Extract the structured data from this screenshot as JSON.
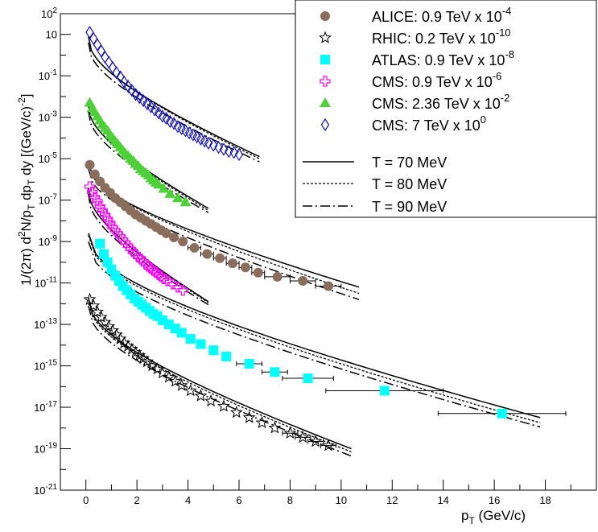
{
  "chart_data": {
    "type": "scatter",
    "title": "",
    "xlabel": {
      "main": "p",
      "sub": "T",
      "rest": " (GeV/c)"
    },
    "ylabel": {
      "p1": "1/(2",
      "pi": "π",
      "p2": ") d",
      "sup2": "2",
      "p3": "N/p",
      "subT1": "T",
      "p4": " dp",
      "subT2": "T",
      "p5": " dy [(GeV/c)",
      "supm2": "-2",
      "p6": "]"
    },
    "xlim": [
      -1,
      20
    ],
    "ylim_log10": [
      -21,
      2
    ],
    "x_ticks": [
      "0",
      "2",
      "4",
      "6",
      "8",
      "10",
      "12",
      "14",
      "16",
      "18"
    ],
    "y_ticks": [
      {
        "base": "10",
        "exp": "2"
      },
      {
        "base": "10",
        "exp": ""
      },
      {
        "base": "10",
        "exp": "-1"
      },
      {
        "base": "10",
        "exp": "-3"
      },
      {
        "base": "10",
        "exp": "-5"
      },
      {
        "base": "10",
        "exp": "-7"
      },
      {
        "base": "10",
        "exp": "-9"
      },
      {
        "base": "10",
        "exp": "-11"
      },
      {
        "base": "10",
        "exp": "-13"
      },
      {
        "base": "10",
        "exp": "-15"
      },
      {
        "base": "10",
        "exp": "-17"
      },
      {
        "base": "10",
        "exp": "-19"
      },
      {
        "base": "10",
        "exp": "-21"
      }
    ],
    "grid": false,
    "legend_position": "top-right",
    "series": [
      {
        "name": "ALICE: 0.9 TeV x 10",
        "exp": "-4",
        "marker": "circle",
        "color": "#8b6d5c",
        "x": [
          0.15,
          0.35,
          0.55,
          0.75,
          0.95,
          1.15,
          1.35,
          1.55,
          1.75,
          1.95,
          2.15,
          2.35,
          2.55,
          2.75,
          2.95,
          3.15,
          3.45,
          3.8,
          4.25,
          4.75,
          5.25,
          5.75,
          6.25,
          6.75,
          7.5,
          8.5,
          9.5
        ],
        "y": [
          -5.3,
          -5.75,
          -6.1,
          -6.4,
          -6.65,
          -6.9,
          -7.1,
          -7.3,
          -7.5,
          -7.7,
          -7.85,
          -8.0,
          -8.15,
          -8.3,
          -8.45,
          -8.6,
          -8.8,
          -9.0,
          -9.3,
          -9.6,
          -9.8,
          -10.05,
          -10.25,
          -10.5,
          -10.7,
          -10.9,
          -11.15
        ],
        "xerr": [
          0,
          0,
          0,
          0,
          0,
          0,
          0,
          0,
          0,
          0,
          0,
          0,
          0,
          0,
          0,
          0,
          0,
          0,
          0.25,
          0.25,
          0.25,
          0.25,
          0.25,
          0.25,
          0.5,
          0.5,
          0.5
        ]
      },
      {
        "name": "RHIC: 0.2 TeV x 10",
        "exp": "-10",
        "marker": "star-open",
        "color": "#000000",
        "x": [
          0.15,
          0.3,
          0.45,
          0.6,
          0.75,
          0.9,
          1.05,
          1.2,
          1.35,
          1.5,
          1.65,
          1.8,
          1.95,
          2.1,
          2.25,
          2.4,
          2.6,
          2.8,
          3.0,
          3.25,
          3.5,
          3.75,
          4.1,
          4.5,
          4.9,
          5.4,
          5.9,
          6.4,
          6.9,
          7.4,
          8.0,
          8.5,
          9.0,
          9.5
        ],
        "y": [
          -11.8,
          -12.1,
          -12.4,
          -12.65,
          -12.9,
          -13.1,
          -13.3,
          -13.5,
          -13.7,
          -13.9,
          -14.05,
          -14.2,
          -14.35,
          -14.5,
          -14.65,
          -14.8,
          -15.0,
          -15.15,
          -15.35,
          -15.55,
          -15.75,
          -15.95,
          -16.2,
          -16.45,
          -16.7,
          -16.95,
          -17.25,
          -17.5,
          -17.75,
          -18.0,
          -18.25,
          -18.45,
          -18.65,
          -18.85
        ],
        "xerr": [
          0,
          0,
          0,
          0,
          0,
          0,
          0,
          0,
          0,
          0,
          0,
          0,
          0,
          0,
          0,
          0,
          0,
          0,
          0,
          0,
          0,
          0,
          0,
          0,
          0,
          0,
          0,
          0,
          0,
          0,
          0.3,
          0.3,
          0.3,
          0.3
        ]
      },
      {
        "name": "ATLAS: 0.9 TeV x 10",
        "exp": "-8",
        "marker": "square",
        "color": "#00ffff",
        "x": [
          0.55,
          0.7,
          0.85,
          1.0,
          1.15,
          1.3,
          1.45,
          1.6,
          1.75,
          1.9,
          2.05,
          2.2,
          2.35,
          2.5,
          2.65,
          2.8,
          3.0,
          3.25,
          3.5,
          3.75,
          4.1,
          4.5,
          5.0,
          5.5,
          6.4,
          7.4,
          8.7,
          11.7,
          16.3
        ],
        "y": [
          -9.1,
          -9.6,
          -10.0,
          -10.35,
          -10.65,
          -10.9,
          -11.15,
          -11.35,
          -11.55,
          -11.75,
          -11.9,
          -12.05,
          -12.2,
          -12.35,
          -12.5,
          -12.6,
          -12.8,
          -13.0,
          -13.2,
          -13.4,
          -13.7,
          -13.95,
          -14.25,
          -14.55,
          -14.9,
          -15.3,
          -15.6,
          -16.2,
          -17.3
        ],
        "xerr": [
          0,
          0,
          0,
          0,
          0,
          0,
          0,
          0,
          0,
          0,
          0,
          0,
          0,
          0,
          0,
          0,
          0,
          0,
          0,
          0,
          0,
          0,
          0,
          0,
          0.5,
          0.5,
          1.0,
          2.3,
          2.5
        ]
      },
      {
        "name": "CMS: 0.9 TeV x 10",
        "exp": "-6",
        "marker": "cross-open",
        "color": "#ff00ff",
        "x": [
          0.15,
          0.25,
          0.35,
          0.45,
          0.55,
          0.65,
          0.75,
          0.85,
          0.95,
          1.05,
          1.15,
          1.25,
          1.35,
          1.45,
          1.55,
          1.65,
          1.75,
          1.85,
          1.95,
          2.05,
          2.15,
          2.25,
          2.35,
          2.45,
          2.55,
          2.65,
          2.75,
          2.85,
          2.95,
          3.05,
          3.2,
          3.4,
          3.6,
          3.8
        ],
        "y": [
          -6.35,
          -6.6,
          -6.85,
          -7.05,
          -7.3,
          -7.5,
          -7.7,
          -7.9,
          -8.1,
          -8.3,
          -8.45,
          -8.6,
          -8.75,
          -8.9,
          -9.05,
          -9.2,
          -9.35,
          -9.5,
          -9.6,
          -9.75,
          -9.85,
          -9.95,
          -10.1,
          -10.2,
          -10.3,
          -10.4,
          -10.5,
          -10.6,
          -10.7,
          -10.8,
          -10.9,
          -11.05,
          -11.2,
          -11.35
        ],
        "xerr": []
      },
      {
        "name": "CMS: 2.36 TeV x 10",
        "exp": "-2",
        "marker": "triangle",
        "color": "#4cd137",
        "x": [
          0.15,
          0.25,
          0.35,
          0.45,
          0.55,
          0.65,
          0.75,
          0.85,
          0.95,
          1.05,
          1.15,
          1.25,
          1.35,
          1.45,
          1.55,
          1.65,
          1.75,
          1.85,
          1.95,
          2.05,
          2.15,
          2.25,
          2.35,
          2.45,
          2.55,
          2.65,
          2.75,
          2.85,
          3.05,
          3.3,
          3.6,
          3.9
        ],
        "y": [
          -2.3,
          -2.55,
          -2.75,
          -2.95,
          -3.15,
          -3.35,
          -3.5,
          -3.65,
          -3.85,
          -4.0,
          -4.15,
          -4.3,
          -4.45,
          -4.6,
          -4.75,
          -4.85,
          -5.0,
          -5.1,
          -5.25,
          -5.35,
          -5.5,
          -5.6,
          -5.7,
          -5.8,
          -5.95,
          -6.05,
          -6.15,
          -6.25,
          -6.45,
          -6.7,
          -6.9,
          -7.1
        ],
        "xerr": []
      },
      {
        "name": "CMS: 7 TeV x 10",
        "exp": "0",
        "marker": "diamond-open",
        "color": "#1010c0",
        "x": [
          0.15,
          0.3,
          0.45,
          0.6,
          0.75,
          0.9,
          1.05,
          1.2,
          1.35,
          1.5,
          1.65,
          1.8,
          1.95,
          2.1,
          2.25,
          2.4,
          2.55,
          2.7,
          2.85,
          3.0,
          3.15,
          3.3,
          3.45,
          3.6,
          3.75,
          3.9,
          4.05,
          4.2,
          4.35,
          4.5,
          4.65,
          4.8,
          5.0,
          5.2,
          5.4,
          5.6,
          5.8,
          6.0
        ],
        "y": [
          1.1,
          0.8,
          0.5,
          0.2,
          -0.1,
          -0.35,
          -0.6,
          -0.85,
          -1.05,
          -1.3,
          -1.5,
          -1.7,
          -1.9,
          -2.05,
          -2.2,
          -2.35,
          -2.5,
          -2.65,
          -2.8,
          -2.95,
          -3.05,
          -3.2,
          -3.3,
          -3.45,
          -3.55,
          -3.65,
          -3.75,
          -3.85,
          -3.95,
          -4.05,
          -4.15,
          -4.25,
          -4.35,
          -4.45,
          -4.55,
          -4.65,
          -4.7,
          -4.8
        ],
        "xerr": []
      }
    ],
    "fit_lines": [
      {
        "name": "T = 70 MeV",
        "dash": "solid"
      },
      {
        "name": "T = 80 MeV",
        "dash": "dotted"
      },
      {
        "name": "T = 90 MeV",
        "dash": "dashdot"
      }
    ],
    "fit_curves": [
      {
        "x0": 0.1,
        "x1": 6.8,
        "y_start": 0.9,
        "y_end": -4.9,
        "variants": [
          [
            0.0,
            0.0
          ],
          [
            0.0,
            -0.1
          ],
          [
            -0.3,
            -0.25
          ]
        ]
      },
      {
        "x0": 0.1,
        "x1": 4.8,
        "y_start": -2.4,
        "y_end": -7.4,
        "variants": [
          [
            0.0,
            0.0
          ],
          [
            0.0,
            -0.1
          ],
          [
            -0.3,
            -0.2
          ]
        ]
      },
      {
        "x0": 0.1,
        "x1": 10.7,
        "y_start": -5.2,
        "y_end": -11.2,
        "variants": [
          [
            0.0,
            0.0
          ],
          [
            0.0,
            -0.3
          ],
          [
            -0.3,
            -0.6
          ]
        ]
      },
      {
        "x0": 0.1,
        "x1": 4.8,
        "y_start": -6.4,
        "y_end": -11.9,
        "variants": [
          [
            0.0,
            0.0
          ],
          [
            0.0,
            -0.05
          ],
          [
            -0.3,
            -0.15
          ]
        ]
      },
      {
        "x0": 0.1,
        "x1": 17.8,
        "y_start": -8.6,
        "y_end": -17.5,
        "variants": [
          [
            0.0,
            0.0
          ],
          [
            -0.1,
            -0.25
          ],
          [
            -0.4,
            -0.45
          ]
        ]
      },
      {
        "x0": 0.1,
        "x1": 10.4,
        "y_start": -11.7,
        "y_end": -19.0,
        "variants": [
          [
            0.0,
            0.0
          ],
          [
            -0.1,
            -0.15
          ],
          [
            -0.4,
            -0.35
          ]
        ]
      }
    ]
  }
}
